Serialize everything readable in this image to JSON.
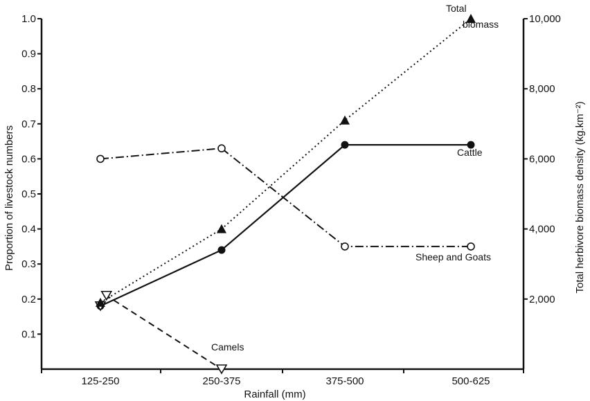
{
  "chart_data": {
    "type": "line",
    "title": "",
    "xlabel": "Rainfall (mm)",
    "ylabel_left": "Proportion of livestock numbers",
    "ylabel_right": "Total herbivore biomass density (kg.km⁻²)",
    "categories": [
      "125-250",
      "250-375",
      "375-500",
      "500-625"
    ],
    "ylim_left": [
      0,
      1.0
    ],
    "ylim_right": [
      0,
      10000
    ],
    "left_ticks": [
      "0.1",
      "0.2",
      "0.3",
      "0.4",
      "0.5",
      "0.6",
      "0.7",
      "0.8",
      "0.9",
      "1.0"
    ],
    "right_ticks": [
      "2,000",
      "4,000",
      "6,000",
      "8,000",
      "10,000"
    ],
    "grid": false,
    "series": [
      {
        "name": "Cattle",
        "axis": "left",
        "style": "solid",
        "marker": "filled-circle",
        "x": [
          0.0,
          1.0,
          2.0,
          3.0
        ],
        "values": [
          0.18,
          0.34,
          0.64,
          0.64
        ]
      },
      {
        "name": "Sheep and Goats",
        "axis": "left",
        "style": "dashdot",
        "marker": "open-circle",
        "x": [
          0.0,
          1.0,
          2.0,
          3.0
        ],
        "values": [
          0.6,
          0.63,
          0.35,
          0.35
        ]
      },
      {
        "name": "Camels",
        "axis": "left",
        "style": "dashed",
        "marker": "open-triangle-down",
        "x": [
          0.0,
          0.05,
          1.0
        ],
        "values": [
          0.18,
          0.21,
          0.0
        ]
      },
      {
        "name": "Total biomass",
        "axis": "right",
        "style": "dotted",
        "marker": "filled-triangle-up",
        "x": [
          0.0,
          1.0,
          2.0,
          3.0
        ],
        "values": [
          1900,
          4000,
          7100,
          10000
        ]
      }
    ]
  }
}
